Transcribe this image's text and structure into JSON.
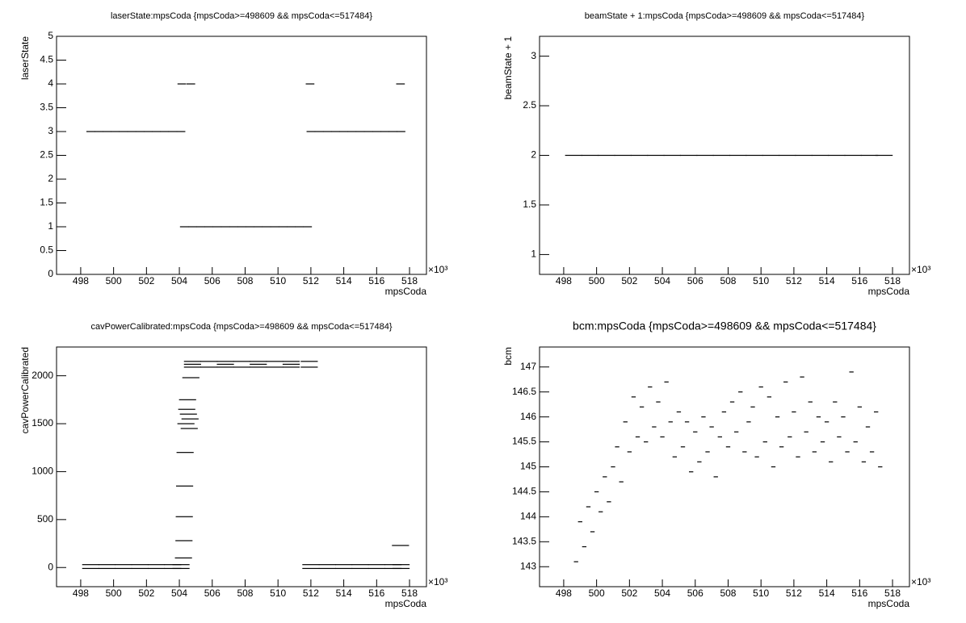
{
  "chart_data": [
    {
      "type": "scatter",
      "title": "laserState:mpsCoda {mpsCoda>=498609 && mpsCoda<=517484}",
      "x_label": "mpsCoda",
      "y_label": "laserState",
      "x_multiplier": "×10³",
      "xlim": [
        496530,
        519030
      ],
      "ylim": [
        0,
        5
      ],
      "xticks": [
        {
          "value": 498000,
          "label": "498"
        },
        {
          "value": 500000,
          "label": "500"
        },
        {
          "value": 502000,
          "label": "502"
        },
        {
          "value": 504000,
          "label": "504"
        },
        {
          "value": 506000,
          "label": "506"
        },
        {
          "value": 508000,
          "label": "508"
        },
        {
          "value": 510000,
          "label": "510"
        },
        {
          "value": 512000,
          "label": "512"
        },
        {
          "value": 514000,
          "label": "514"
        },
        {
          "value": 516000,
          "label": "516"
        },
        {
          "value": 518000,
          "label": "518"
        }
      ],
      "yticks": [
        0,
        0.5,
        1,
        1.5,
        2,
        2.5,
        3,
        3.5,
        4,
        4.5,
        5
      ],
      "x": [
        498609,
        499100,
        499600,
        500100,
        500600,
        501100,
        501600,
        502100,
        502600,
        503100,
        503600,
        504100,
        504150,
        504300,
        504700,
        504800,
        505300,
        505800,
        506300,
        506800,
        507300,
        507800,
        508300,
        508800,
        509300,
        509800,
        510300,
        510800,
        511300,
        511800,
        511950,
        512000,
        512500,
        513000,
        513500,
        514000,
        514500,
        515000,
        515500,
        516000,
        516500,
        517000,
        517450,
        517484
      ],
      "y": [
        3,
        3,
        3,
        3,
        3,
        3,
        3,
        3,
        3,
        3,
        3,
        3,
        4,
        1,
        4,
        1,
        1,
        1,
        1,
        1,
        1,
        1,
        1,
        1,
        1,
        1,
        1,
        1,
        1,
        1,
        4,
        3,
        3,
        3,
        3,
        3,
        3,
        3,
        3,
        3,
        3,
        3,
        4,
        3
      ]
    },
    {
      "type": "scatter",
      "title": "beamState + 1:mpsCoda {mpsCoda>=498609 && mpsCoda<=517484}",
      "x_label": "mpsCoda",
      "y_label": "beamState + 1",
      "x_multiplier": "×10³",
      "xlim": [
        496530,
        519030
      ],
      "ylim": [
        0.8,
        3.2
      ],
      "xticks": [
        {
          "value": 498000,
          "label": "498"
        },
        {
          "value": 500000,
          "label": "500"
        },
        {
          "value": 502000,
          "label": "502"
        },
        {
          "value": 504000,
          "label": "504"
        },
        {
          "value": 506000,
          "label": "506"
        },
        {
          "value": 508000,
          "label": "508"
        },
        {
          "value": 510000,
          "label": "510"
        },
        {
          "value": 512000,
          "label": "512"
        },
        {
          "value": 514000,
          "label": "514"
        },
        {
          "value": 516000,
          "label": "516"
        },
        {
          "value": 518000,
          "label": "518"
        }
      ],
      "yticks": [
        1,
        1.5,
        2,
        2.5,
        3
      ],
      "x": [
        498609,
        499600,
        500600,
        501600,
        502600,
        503600,
        504600,
        505600,
        506600,
        507600,
        508600,
        509600,
        510600,
        511600,
        512600,
        513600,
        514600,
        515600,
        516600,
        517484
      ],
      "y": [
        2,
        2,
        2,
        2,
        2,
        2,
        2,
        2,
        2,
        2,
        2,
        2,
        2,
        2,
        2,
        2,
        2,
        2,
        2,
        2
      ]
    },
    {
      "type": "scatter",
      "title": "cavPowerCalibrated:mpsCoda {mpsCoda>=498609 && mpsCoda<=517484}",
      "x_label": "mpsCoda",
      "y_label": "cavPowerCalibrated",
      "x_multiplier": "×10³",
      "xlim": [
        496530,
        519030
      ],
      "ylim": [
        -200,
        2300
      ],
      "xticks": [
        {
          "value": 498000,
          "label": "498"
        },
        {
          "value": 500000,
          "label": "500"
        },
        {
          "value": 502000,
          "label": "502"
        },
        {
          "value": 504000,
          "label": "504"
        },
        {
          "value": 506000,
          "label": "506"
        },
        {
          "value": 508000,
          "label": "508"
        },
        {
          "value": 510000,
          "label": "510"
        },
        {
          "value": 512000,
          "label": "512"
        },
        {
          "value": 514000,
          "label": "514"
        },
        {
          "value": 516000,
          "label": "516"
        },
        {
          "value": 518000,
          "label": "518"
        }
      ],
      "yticks": [
        0,
        500,
        1000,
        1500,
        2000
      ],
      "x": [
        498609,
        498609,
        499600,
        499600,
        500600,
        500600,
        501600,
        501600,
        502600,
        502600,
        503600,
        503600,
        504100,
        504100,
        504250,
        504280,
        504300,
        504320,
        504350,
        504400,
        504450,
        504500,
        504550,
        504600,
        504650,
        504700,
        504800,
        504800,
        505800,
        505800,
        506800,
        506800,
        507800,
        507800,
        508800,
        508800,
        509800,
        509800,
        510800,
        510800,
        511900,
        511900,
        504800,
        506800,
        508800,
        510800,
        512000,
        512000,
        513000,
        513000,
        514000,
        514000,
        515000,
        515000,
        516000,
        516000,
        517000,
        517000,
        517484,
        517484,
        517450
      ],
      "y": [
        30,
        -10,
        30,
        -10,
        30,
        -10,
        30,
        -10,
        30,
        -10,
        30,
        -10,
        30,
        -10,
        100,
        280,
        530,
        850,
        1200,
        1500,
        1650,
        1750,
        1600,
        1450,
        1550,
        1980,
        2150,
        2090,
        2150,
        2090,
        2150,
        2090,
        2150,
        2090,
        2150,
        2090,
        2150,
        2090,
        2150,
        2090,
        2150,
        2090,
        2120,
        2120,
        2120,
        2120,
        30,
        -10,
        30,
        -10,
        30,
        -10,
        30,
        -10,
        30,
        -10,
        30,
        -10,
        30,
        -10,
        230
      ]
    },
    {
      "type": "scatter",
      "title": "bcm:mpsCoda {mpsCoda>=498609 && mpsCoda<=517484}",
      "x_label": "mpsCoda",
      "y_label": "bcm",
      "x_multiplier": "×10³",
      "xlim": [
        496530,
        519030
      ],
      "ylim": [
        142.6,
        147.4
      ],
      "xticks": [
        {
          "value": 498000,
          "label": "498"
        },
        {
          "value": 500000,
          "label": "500"
        },
        {
          "value": 502000,
          "label": "502"
        },
        {
          "value": 504000,
          "label": "504"
        },
        {
          "value": 506000,
          "label": "506"
        },
        {
          "value": 508000,
          "label": "508"
        },
        {
          "value": 510000,
          "label": "510"
        },
        {
          "value": 512000,
          "label": "512"
        },
        {
          "value": 514000,
          "label": "514"
        },
        {
          "value": 516000,
          "label": "516"
        },
        {
          "value": 518000,
          "label": "518"
        }
      ],
      "yticks": [
        143,
        143.5,
        144,
        144.5,
        145,
        145.5,
        146,
        146.5,
        147
      ],
      "x": [
        498750,
        499000,
        499250,
        499500,
        499750,
        500000,
        500250,
        500500,
        500750,
        501000,
        501250,
        501500,
        501750,
        502000,
        502250,
        502500,
        502750,
        503000,
        503250,
        503500,
        503750,
        504000,
        504250,
        504500,
        504750,
        505000,
        505250,
        505500,
        505750,
        506000,
        506250,
        506500,
        506750,
        507000,
        507250,
        507500,
        507750,
        508000,
        508250,
        508500,
        508750,
        509000,
        509250,
        509500,
        509750,
        510000,
        510250,
        510500,
        510750,
        511000,
        511250,
        511500,
        511750,
        512000,
        512250,
        512500,
        512750,
        513000,
        513250,
        513500,
        513750,
        514000,
        514250,
        514500,
        514750,
        515000,
        515250,
        515500,
        515750,
        516000,
        516250,
        516500,
        516750,
        517000,
        517250
      ],
      "y": [
        143.1,
        143.9,
        143.4,
        144.2,
        143.7,
        144.5,
        144.1,
        144.8,
        144.3,
        145.0,
        145.4,
        144.7,
        145.9,
        145.3,
        146.4,
        145.6,
        146.2,
        145.5,
        146.6,
        145.8,
        146.3,
        145.6,
        146.7,
        145.9,
        145.2,
        146.1,
        145.4,
        145.9,
        144.9,
        145.7,
        145.1,
        146.0,
        145.3,
        145.8,
        144.8,
        145.6,
        146.1,
        145.4,
        146.3,
        145.7,
        146.5,
        145.3,
        145.9,
        146.2,
        145.2,
        146.6,
        145.5,
        146.4,
        145.0,
        146.0,
        145.4,
        146.7,
        145.6,
        146.1,
        145.2,
        146.8,
        145.7,
        146.3,
        145.3,
        146.0,
        145.5,
        145.9,
        145.1,
        146.3,
        145.6,
        146.0,
        145.3,
        146.9,
        145.5,
        146.2,
        145.1,
        145.8,
        145.3,
        146.1,
        145.0
      ]
    }
  ]
}
